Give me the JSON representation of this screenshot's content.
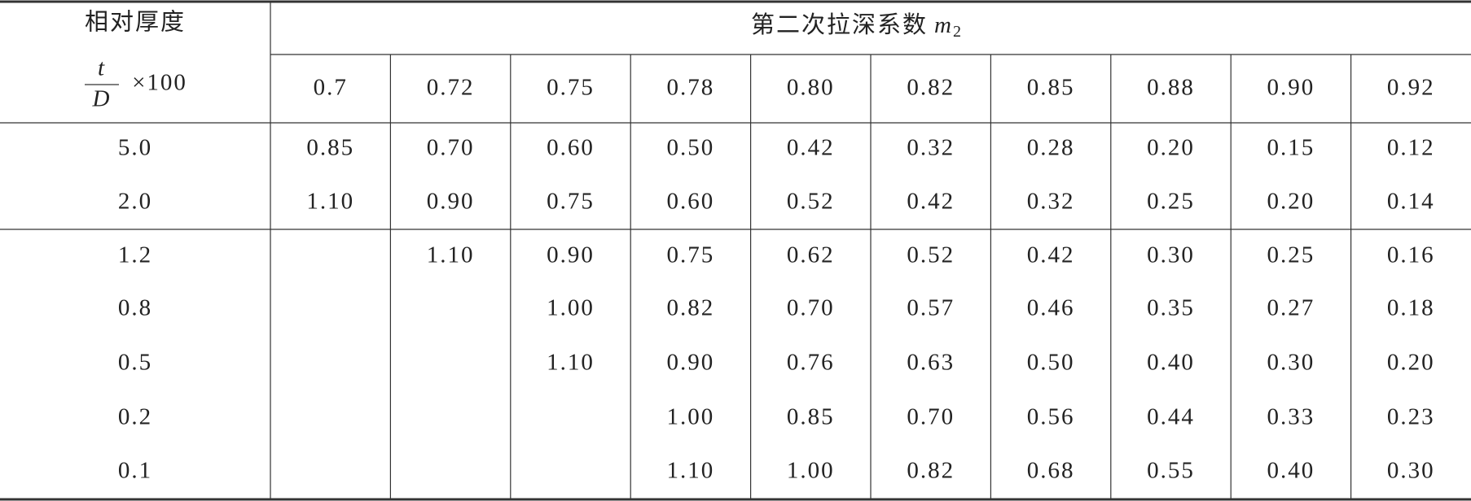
{
  "table": {
    "header": {
      "row_label": "相对厚度",
      "fraction_numerator": "t",
      "fraction_denominator": "D",
      "fraction_multiplier": "×100",
      "group_title": "第二次拉深系数",
      "group_symbol": "m",
      "group_subscript": "2",
      "columns": [
        "0.7",
        "0.72",
        "0.75",
        "0.78",
        "0.80",
        "0.82",
        "0.85",
        "0.88",
        "0.90",
        "0.92"
      ]
    },
    "rows": [
      {
        "label": "5.0",
        "cells": [
          "0.85",
          "0.70",
          "0.60",
          "0.50",
          "0.42",
          "0.32",
          "0.28",
          "0.20",
          "0.15",
          "0.12"
        ]
      },
      {
        "label": "2.0",
        "cells": [
          "1.10",
          "0.90",
          "0.75",
          "0.60",
          "0.52",
          "0.42",
          "0.32",
          "0.25",
          "0.20",
          "0.14"
        ]
      },
      {
        "label": "1.2",
        "cells": [
          null,
          "1.10",
          "0.90",
          "0.75",
          "0.62",
          "0.52",
          "0.42",
          "0.30",
          "0.25",
          "0.16"
        ]
      },
      {
        "label": "0.8",
        "cells": [
          null,
          null,
          "1.00",
          "0.82",
          "0.70",
          "0.57",
          "0.46",
          "0.35",
          "0.27",
          "0.18"
        ]
      },
      {
        "label": "0.5",
        "cells": [
          null,
          null,
          "1.10",
          "0.90",
          "0.76",
          "0.63",
          "0.50",
          "0.40",
          "0.30",
          "0.20"
        ]
      },
      {
        "label": "0.2",
        "cells": [
          null,
          null,
          null,
          "1.00",
          "0.85",
          "0.70",
          "0.56",
          "0.44",
          "0.33",
          "0.23"
        ]
      },
      {
        "label": "0.1",
        "cells": [
          null,
          null,
          null,
          "1.10",
          "1.00",
          "0.82",
          "0.68",
          "0.55",
          "0.40",
          "0.30"
        ]
      }
    ]
  }
}
